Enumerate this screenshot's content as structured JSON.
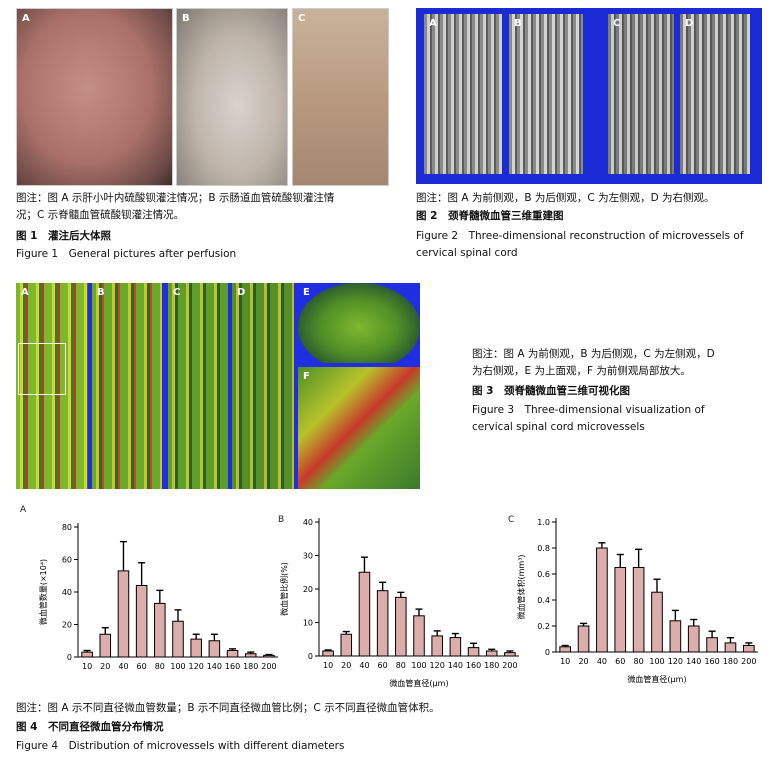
{
  "fig1": {
    "panels": [
      "A",
      "B",
      "C"
    ],
    "note_line1": "图注：图 A 示肝小叶内硫酸钡灌注情况；B 示肠道血管硫酸钡灌注情",
    "note_line2": "况；C 示脊髓血管硫酸钡灌注情况。",
    "title_cn": "图 1　灌注后大体照",
    "title_en": "Figure 1　General pictures after perfusion"
  },
  "fig2": {
    "panels": [
      "A",
      "B",
      "C",
      "D"
    ],
    "note": "图注：图 A 为前侧观，B 为后侧观，C 为左侧观，D 为右侧观。",
    "title_cn": "图 2　颈脊髓微血管三维重建图",
    "title_en_line1": "Figure 2　Three-dimensional reconstruction of microvessels of",
    "title_en_line2": "cervical spinal cord"
  },
  "fig3": {
    "panels": [
      "A",
      "B",
      "C",
      "D",
      "E",
      "F"
    ],
    "note_line1": "图注：图 A 为前侧观，B 为后侧观，C 为左侧观，D",
    "note_line2": "为右侧观，E 为上面观，F 为前侧观局部放大。",
    "title_cn": "图 3　颈脊髓微血管三维可视化图",
    "title_en_line1": "Figure 3　Three-dimensional visualization of",
    "title_en_line2": "cervical spinal cord microvessels"
  },
  "fig4": {
    "note": "图注：图 A 示不同直径微血管数量；B 示不同直径微血管比例；C 示不同直径微血管体积。",
    "title_cn": "图 4　不同直径微血管分布情况",
    "title_en": "Figure 4　Distribution of microvessels with different diameters"
  },
  "chart_data": [
    {
      "type": "bar",
      "panel": "A",
      "ylabel": "微血管数量(×10⁴)",
      "xlabel": "",
      "categories": [
        "10",
        "20",
        "40",
        "60",
        "80",
        "100",
        "120",
        "140",
        "160",
        "180",
        "200"
      ],
      "values": [
        3,
        14,
        53,
        44,
        33,
        22,
        11,
        10,
        4,
        2,
        1
      ],
      "errors": [
        1,
        4,
        18,
        14,
        8,
        7,
        3,
        4,
        1,
        1,
        0.5
      ],
      "ylim": [
        0,
        80
      ],
      "yticks": [
        0,
        20,
        40,
        60,
        80
      ],
      "ytick_labels": [
        "0",
        "20",
        "40",
        "60",
        "80"
      ],
      "bar_color": "#dcaeab"
    },
    {
      "type": "bar",
      "panel": "B",
      "ylabel": "微血管比例(%)",
      "xlabel": "微血管直径(μm)",
      "categories": [
        "10",
        "20",
        "40",
        "60",
        "80",
        "100",
        "120",
        "140",
        "160",
        "180",
        "200"
      ],
      "values": [
        1.5,
        6.5,
        25,
        19.5,
        17.5,
        12,
        6,
        5.5,
        2.5,
        1.5,
        1
      ],
      "errors": [
        0.3,
        0.8,
        4.5,
        2.5,
        1.5,
        2,
        1.5,
        1.2,
        1.3,
        0.5,
        0.5
      ],
      "ylim": [
        0,
        40
      ],
      "yticks": [
        0,
        10,
        20,
        30,
        40
      ],
      "ytick_labels": [
        "0",
        "10",
        "20",
        "30",
        "40"
      ],
      "bar_color": "#dcaeab"
    },
    {
      "type": "bar",
      "panel": "C",
      "ylabel": "微血管体积(mm³)",
      "xlabel": "微血管直径(μm)",
      "categories": [
        "10",
        "20",
        "40",
        "60",
        "80",
        "100",
        "120",
        "140",
        "160",
        "180",
        "200"
      ],
      "values": [
        0.04,
        0.2,
        0.8,
        0.65,
        0.65,
        0.46,
        0.24,
        0.2,
        0.11,
        0.07,
        0.05
      ],
      "errors": [
        0.01,
        0.02,
        0.04,
        0.1,
        0.14,
        0.1,
        0.08,
        0.05,
        0.05,
        0.04,
        0.02
      ],
      "ylim": [
        0,
        1.0
      ],
      "yticks": [
        0,
        0.2,
        0.4,
        0.6,
        0.8,
        1.0
      ],
      "ytick_labels": [
        "0",
        "0.2",
        "0.4",
        "0.6",
        "0.8",
        "1.0"
      ],
      "bar_color": "#dcaeab"
    }
  ]
}
